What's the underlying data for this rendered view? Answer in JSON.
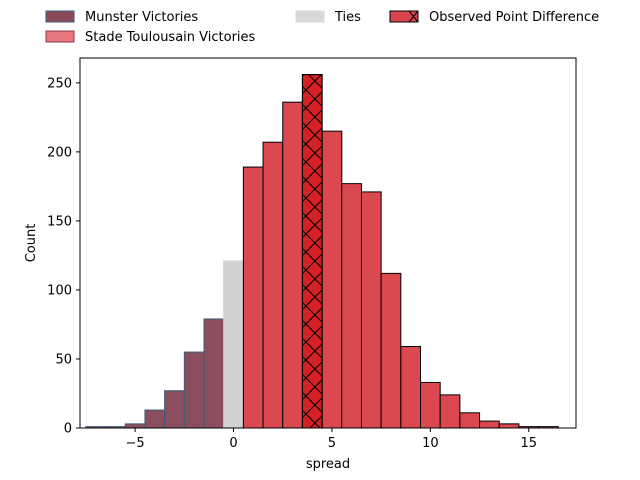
{
  "chart_data": {
    "type": "bar",
    "title": "",
    "xlabel": "spread",
    "ylabel": "Count",
    "xlim": [
      -7.8,
      17.4
    ],
    "ylim": [
      0,
      268
    ],
    "bin_width": 1,
    "x_ticks": [
      -5,
      0,
      5,
      10,
      15
    ],
    "y_ticks": [
      0,
      50,
      100,
      150,
      200,
      250
    ],
    "grid": false,
    "legend": {
      "placement": "top",
      "entries": [
        {
          "label": "Munster Victories",
          "color": "#8b4a5a"
        },
        {
          "label": "Stade Toulousain Victories",
          "color": "#e8777f"
        },
        {
          "label": "Ties",
          "color": "#d9d8d8"
        },
        {
          "label": "Observed Point Difference",
          "color": "#d9434b",
          "hatch": "x"
        }
      ]
    },
    "colors": {
      "munster": "#8b4e5f",
      "ties": "#d3d1d2",
      "stade": "#dc4850",
      "observed": "#d42027",
      "munster_edge": "#3b5b79",
      "edge": "#000000"
    },
    "series": [
      {
        "name": "Munster Victories",
        "x": [
          -7,
          -6,
          -5,
          -4,
          -3,
          -2,
          -1
        ],
        "values": [
          1,
          1,
          3,
          13,
          27,
          55,
          79
        ]
      },
      {
        "name": "Ties",
        "x": [
          0
        ],
        "values": [
          121
        ]
      },
      {
        "name": "Stade Toulousain Victories",
        "x": [
          1,
          2,
          3,
          5,
          6,
          7,
          8,
          9,
          10,
          11,
          12,
          13,
          14,
          15,
          16
        ],
        "values": [
          189,
          207,
          236,
          215,
          177,
          171,
          112,
          59,
          33,
          24,
          11,
          5,
          3,
          1,
          1
        ]
      },
      {
        "name": "Observed Point Difference",
        "x": [
          4
        ],
        "values": [
          256
        ]
      }
    ]
  }
}
